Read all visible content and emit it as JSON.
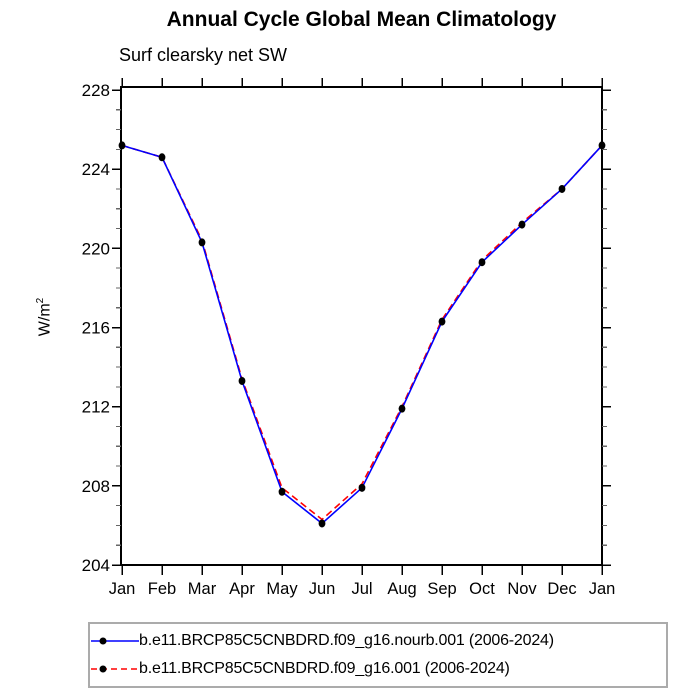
{
  "chart_data": {
    "type": "line",
    "title": "Annual Cycle Global Mean Climatology",
    "subtitle": "Surf clearsky net SW",
    "ylabel": "W/m^2",
    "ylabel_base": "W/m",
    "ylabel_sup": "2",
    "categories": [
      "Jan",
      "Feb",
      "Mar",
      "Apr",
      "May",
      "Jun",
      "Jul",
      "Aug",
      "Sep",
      "Oct",
      "Nov",
      "Dec",
      "Jan"
    ],
    "ylim": [
      204,
      228
    ],
    "y_major_ticks": [
      228,
      224,
      220,
      216,
      212,
      208,
      204
    ],
    "y_minor_step": 1,
    "grid": false,
    "legend_position": "bottom",
    "axis_color": "#000000",
    "marker_color": "#000000",
    "series": [
      {
        "name": "b.e11.BRCP85C5CNBDRD.f09_g16.nourb.001 (2006-2024)",
        "color": "#0000ff",
        "line_style": "solid",
        "marker": "filled-black-circle",
        "values": [
          225.2,
          224.6,
          220.3,
          213.3,
          207.7,
          206.1,
          207.9,
          211.9,
          216.3,
          219.3,
          221.2,
          223.0,
          225.2
        ]
      },
      {
        "name": "b.e11.BRCP85C5CNBDRD.f09_g16.001 (2006-2024)",
        "color": "#ff0000",
        "line_style": "dashed",
        "marker": "filled-black-circle",
        "values": [
          225.2,
          224.6,
          220.4,
          213.4,
          207.9,
          206.3,
          208.1,
          212.0,
          216.4,
          219.4,
          221.3,
          223.0,
          225.2
        ]
      }
    ]
  }
}
